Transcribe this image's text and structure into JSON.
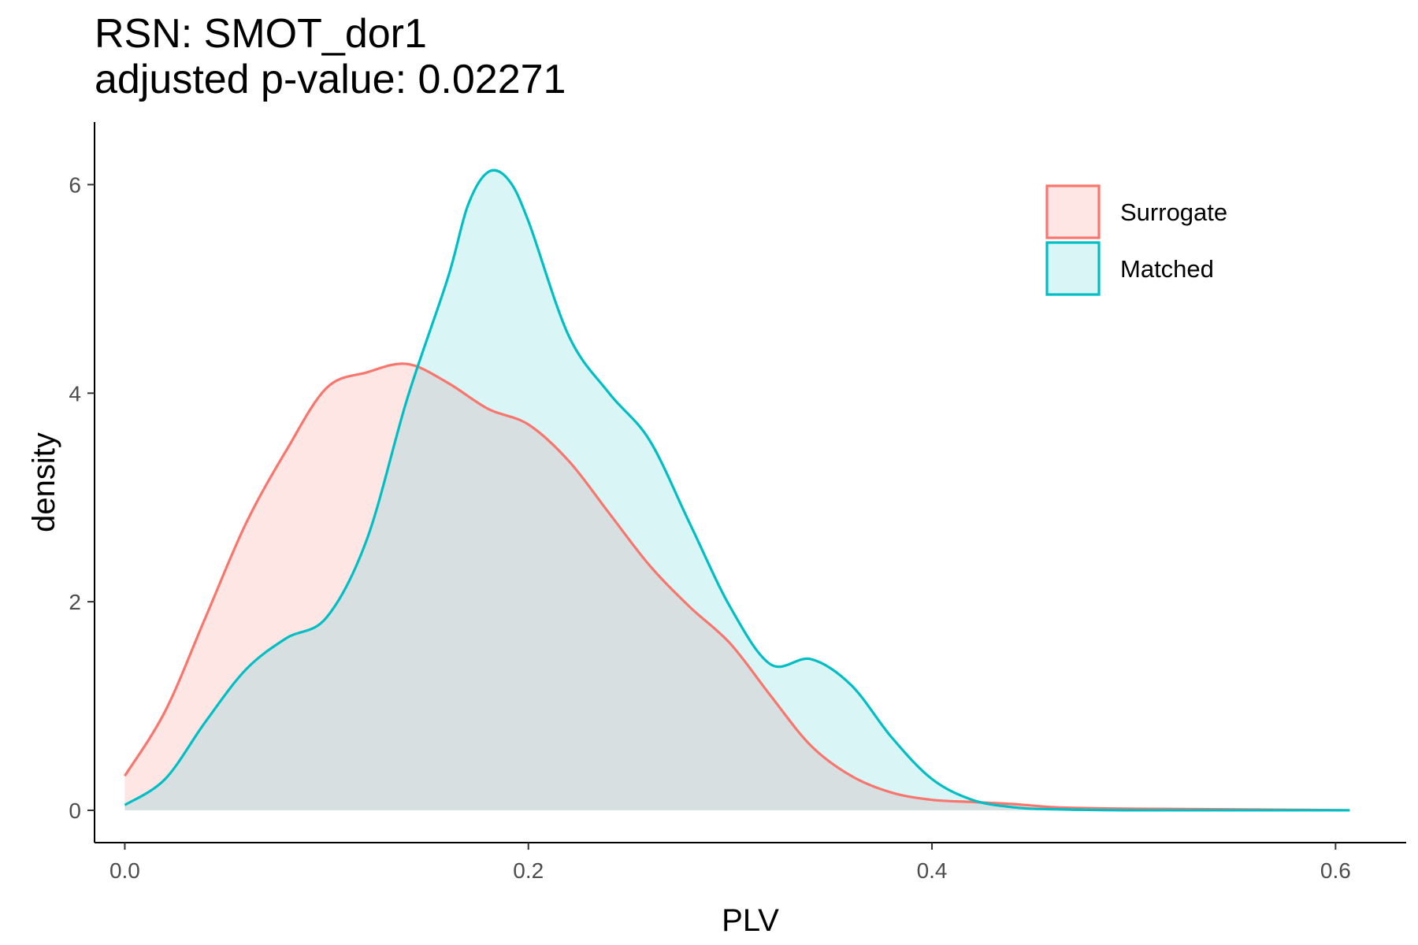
{
  "chart_data": {
    "type": "area",
    "title": "RSN: SMOT_dor1",
    "subtitle": "adjusted p-value: 0.02271",
    "xlabel": "PLV",
    "ylabel": "density",
    "xlim": [
      -0.015,
      0.635
    ],
    "ylim": [
      -0.31,
      6.6
    ],
    "xticks": [
      0.0,
      0.2,
      0.4,
      0.6
    ],
    "xtick_labels": [
      "0.0",
      "0.2",
      "0.4",
      "0.6"
    ],
    "yticks": [
      0,
      2,
      4,
      6
    ],
    "ytick_labels": [
      "0",
      "2",
      "4",
      "6"
    ],
    "grid": false,
    "legend_position": "top-right",
    "series": [
      {
        "name": "Surrogate",
        "color": "#F8766D",
        "fill_opacity": 0.18,
        "x": [
          0.0,
          0.02,
          0.04,
          0.06,
          0.08,
          0.1,
          0.12,
          0.14,
          0.16,
          0.18,
          0.2,
          0.22,
          0.24,
          0.26,
          0.28,
          0.3,
          0.32,
          0.34,
          0.36,
          0.38,
          0.4,
          0.42,
          0.44,
          0.46,
          0.48,
          0.5,
          0.54,
          0.58,
          0.607
        ],
        "y": [
          0.33,
          0.95,
          1.85,
          2.75,
          3.45,
          4.05,
          4.2,
          4.28,
          4.1,
          3.85,
          3.7,
          3.35,
          2.85,
          2.35,
          1.95,
          1.6,
          1.1,
          0.62,
          0.33,
          0.17,
          0.1,
          0.08,
          0.06,
          0.03,
          0.02,
          0.015,
          0.01,
          0.005,
          0.0
        ]
      },
      {
        "name": "Matched",
        "color": "#00BFC4",
        "fill_opacity": 0.15,
        "x": [
          0.0,
          0.02,
          0.04,
          0.06,
          0.08,
          0.1,
          0.12,
          0.14,
          0.16,
          0.17,
          0.18,
          0.19,
          0.2,
          0.22,
          0.24,
          0.26,
          0.28,
          0.3,
          0.32,
          0.34,
          0.36,
          0.38,
          0.4,
          0.42,
          0.44,
          0.46,
          0.5,
          0.55,
          0.607
        ],
        "y": [
          0.05,
          0.3,
          0.85,
          1.35,
          1.65,
          1.85,
          2.6,
          3.95,
          5.1,
          5.8,
          6.12,
          6.05,
          5.65,
          4.55,
          4.0,
          3.55,
          2.75,
          1.95,
          1.4,
          1.45,
          1.2,
          0.7,
          0.3,
          0.1,
          0.03,
          0.01,
          0.0,
          0.0,
          0.0
        ]
      }
    ]
  }
}
